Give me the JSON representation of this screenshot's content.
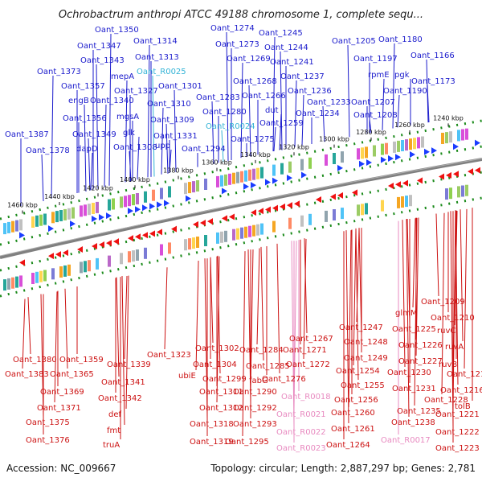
{
  "title": "Ochrobactrum anthropi ATCC 49188 chromosome 1, complete sequ...",
  "footer": {
    "accession": "Accession: NC_009667",
    "summary": "Topology: circular; Length: 2,887,297 bp; Genes: 2,781"
  },
  "colors": {
    "forward_label": "#1a1acc",
    "reverse_label": "#cc1111",
    "rna_forward": "#33b3d6",
    "rna_reverse": "#e88ac0",
    "forward_arrow": "#1a3cff",
    "reverse_arrow": "#ee1111",
    "backbone": "#808080"
  },
  "kbp_ticks": [
    "1460 kbp",
    "1440 kbp",
    "1420 kbp",
    "1400 kbp",
    "1380 kbp",
    "1360 kbp",
    "1340 kbp",
    "1320 kbp",
    "1300 kbp",
    "1280 kbp",
    "1260 kbp",
    "1240 kbp"
  ],
  "forward_genes": [
    "Oant_1350",
    "Oant_1347",
    "Oant_1343",
    "Oant_1373",
    "Oant_1357",
    "engB",
    "Oant_1340",
    "Oant_1356",
    "Oant_1349",
    "dapD",
    "Oant_1387",
    "Oant_1378",
    "Oant_1314",
    "Oant_1313",
    "Oant_R0025",
    "mepA",
    "Oant_1327",
    "Oant_1301",
    "Oant_1310",
    "mgsA",
    "Oant_1309",
    "glk",
    "Oant_1331",
    "Oant_1308",
    "upp",
    "Oant_1294",
    "Oant_1274",
    "Oant_1245",
    "Oant_1273",
    "Oant_1244",
    "Oant_1269",
    "Oant_1241",
    "Oant_1268",
    "Oant_1237",
    "Oant_1266",
    "Oant_1283",
    "Oant_1236",
    "Oant_1280",
    "Oant_1233",
    "dut",
    "Oant_1234",
    "Oant_R0024",
    "Oant_1259",
    "Oant_1275",
    "Oant_1205",
    "Oant_1180",
    "Oant_1197",
    "Oant_1166",
    "rpmE",
    "pgk",
    "Oant_1173",
    "Oant_1190",
    "Oant_1207",
    "Oant_1208"
  ],
  "reverse_genes": [
    "Oant_1380",
    "Oant_1359",
    "Oant_1383",
    "Oant_1365",
    "Oant_1369",
    "Oant_1371",
    "Oant_1375",
    "Oant_1376",
    "Oant_1339",
    "Oant_1341",
    "Oant_1342",
    "def",
    "fmt",
    "truA",
    "Oant_1323",
    "Oant_1302",
    "Oant_1304",
    "ubiE",
    "Oant_1299",
    "Oant_1311",
    "Oant_1312",
    "Oant_1318",
    "Oant_1319",
    "Oant_1284",
    "Oant_1285",
    "fabG",
    "Oant_1290",
    "Oant_1292",
    "Oant_1293",
    "Oant_1295",
    "Oant_1267",
    "Oant_1271",
    "Oant_1272",
    "Oant_1276",
    "Oant_R0018",
    "Oant_R0021",
    "Oant_R0022",
    "Oant_R0023",
    "Oant_1247",
    "Oant_1248",
    "Oant_1249",
    "Oant_1254",
    "Oant_1255",
    "Oant_1256",
    "Oant_1260",
    "Oant_1261",
    "Oant_1264",
    "glmM",
    "Oant_1225",
    "Oant_1226",
    "Oant_1227",
    "Oant_1230",
    "Oant_1231",
    "Oant_1235",
    "Oant_1238",
    "Oant_R0017",
    "Oant_1228",
    "Oant_1209",
    "Oant_1210",
    "ruvC",
    "ruvA",
    "ruvB",
    "Oant_1215",
    "Oant_1216",
    "tolB",
    "Oant_1221",
    "Oant_1222",
    "Oant_1223"
  ]
}
